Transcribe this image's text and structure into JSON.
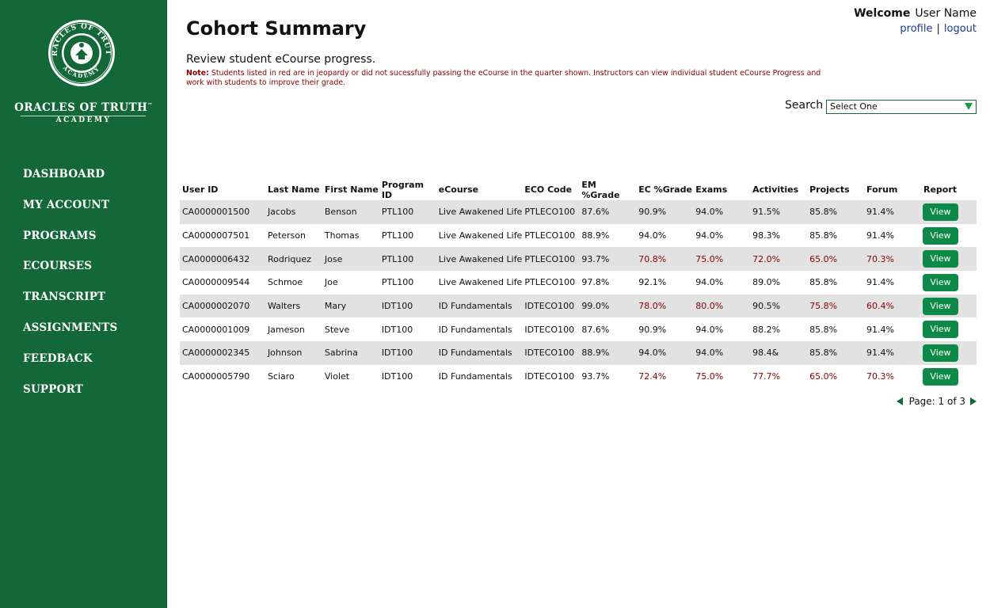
{
  "brand": {
    "name": "ORACLES OF TRUTH",
    "tm": "™",
    "sub": "ACADEMY"
  },
  "sidebar": {
    "items": [
      {
        "label": "DASHBOARD"
      },
      {
        "label": "MY ACCOUNT"
      },
      {
        "label": "PROGRAMS"
      },
      {
        "label": "ECOURSES"
      },
      {
        "label": "TRANSCRIPT"
      },
      {
        "label": "ASSIGNMENTS"
      },
      {
        "label": "FEEDBACK"
      },
      {
        "label": "SUPPORT"
      }
    ]
  },
  "header": {
    "title": "Cohort Summary",
    "welcome": "Welcome",
    "user_name": "User Name",
    "profile": "profile",
    "separator": "|",
    "logout": "logout"
  },
  "main": {
    "subtitle": "Review student eCourse progress.",
    "note_label": "Note:",
    "note_text": " Students listed in red are in jeopardy or did not sucessfully passing the eCourse in the quarter shown. Instructors can view individual student eCourse Progress and work with students to improve their grade.",
    "search_label": "Search",
    "search_value": "Select One"
  },
  "colors": {
    "sidebar": "#146837",
    "button": "#0e8a48",
    "alert": "#8b0000",
    "row_shade": "#e2e2e2"
  },
  "table": {
    "columns": [
      "User ID",
      "Last Name",
      "First Name",
      "Program ID",
      "eCourse",
      "ECO Code",
      "EM %Grade",
      "EC %Grade",
      "Exams",
      "Activities",
      "Projects",
      "Forum",
      "Report"
    ],
    "view_label": "View",
    "rows": [
      [
        "CA0000001500",
        "Jacobs",
        "Benson",
        "PTL100",
        "Live Awakened Life",
        "PTLECO100",
        "87.6%",
        "90.9%",
        "94.0%",
        "91.5%",
        "85.8%",
        "91.4%"
      ],
      [
        "CA0000007501",
        "Peterson",
        "Thomas",
        "PTL100",
        "Live Awakened Life",
        "PTLECO100",
        "88.9%",
        "94.0%",
        "94.0%",
        "98.3%",
        "85.8%",
        "91.4%"
      ],
      [
        "CA0000006432",
        "Rodriquez",
        "Jose",
        "PTL100",
        "Live Awakened Life",
        "PTLECO100",
        "93.7%",
        "70.8%",
        "75.0%",
        "72.0%",
        "65.0%",
        "70.3%"
      ],
      [
        "CA0000009544",
        "Schmoe",
        "Joe",
        "PTL100",
        "Live Awakened Life",
        "PTLECO100",
        "97.8%",
        "92.1%",
        "94.0%",
        "89.0%",
        "85.8%",
        "91.4%"
      ],
      [
        "CA0000002070",
        "Walters",
        "Mary",
        "IDT100",
        "ID Fundamentals",
        "IDTECO100",
        "99.0%",
        "78.0%",
        "80.0%",
        "90.5%",
        "75.8%",
        "60.4%"
      ],
      [
        "CA0000001009",
        "Jameson",
        "Steve",
        "IDT100",
        "ID Fundamentals",
        "IDTECO100",
        "87.6%",
        "90.9%",
        "94.0%",
        "88.2%",
        "85.8%",
        "91.4%"
      ],
      [
        "CA0000002345",
        "Johnson",
        "Sabrina",
        "IDT100",
        "ID Fundamentals",
        "IDTECO100",
        "88.9%",
        "94.0%",
        "94.0%",
        "98.4&",
        "85.8%",
        "91.4%"
      ],
      [
        "CA0000005790",
        "Sciaro",
        "Violet",
        "IDT100",
        "ID Fundamentals",
        "IDTECO100",
        "93.7%",
        "72.4%",
        "75.0%",
        "77.7%",
        "65.0%",
        "70.3%"
      ]
    ],
    "red_cells": [
      [],
      [],
      [
        7,
        8,
        9,
        10,
        11
      ],
      [],
      [
        7,
        8,
        10,
        11
      ],
      [],
      [],
      [
        7,
        8,
        9,
        10,
        11
      ]
    ]
  },
  "pager": {
    "text": "Page: 1 of 3"
  }
}
